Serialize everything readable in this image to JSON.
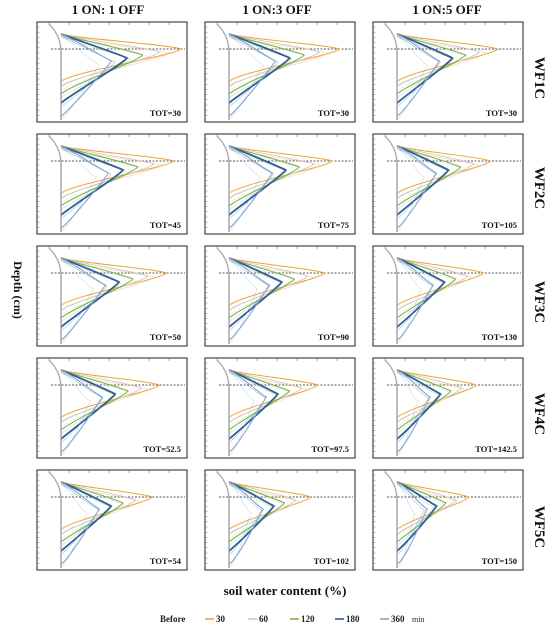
{
  "chart_data": {
    "type": "line",
    "column_headers": [
      "1 ON: 1 OFF",
      "1 ON:3 OFF",
      "1 ON:5 OFF"
    ],
    "row_headers": [
      "WF1C",
      "WF2C",
      "WF3C",
      "WF4C",
      "WF5C"
    ],
    "ylabel": "Depth (cm)",
    "xlabel": "soil water content (%)",
    "tot_labels": [
      [
        "TOT=30",
        "TOT=30",
        "TOT=30"
      ],
      [
        "TOT=45",
        "TOT=75",
        "TOT=105"
      ],
      [
        "TOT=50",
        "TOT=90",
        "TOT=130"
      ],
      [
        "TOT=52.5",
        "TOT=97.5",
        "TOT=142.5"
      ],
      [
        "TOT=54",
        "TOT=102",
        "TOT=150"
      ]
    ],
    "legend": {
      "entries": [
        "Before",
        "30",
        "60",
        "120",
        "180",
        "360"
      ],
      "unit": "min"
    },
    "series_colors": {
      "Before": "#9aa0a6",
      "30": "#f2a23a",
      "60": "#c9c9c9",
      "120": "#7cb342",
      "180": "#2f5f9a",
      "360": "#7ea6d6"
    }
  }
}
